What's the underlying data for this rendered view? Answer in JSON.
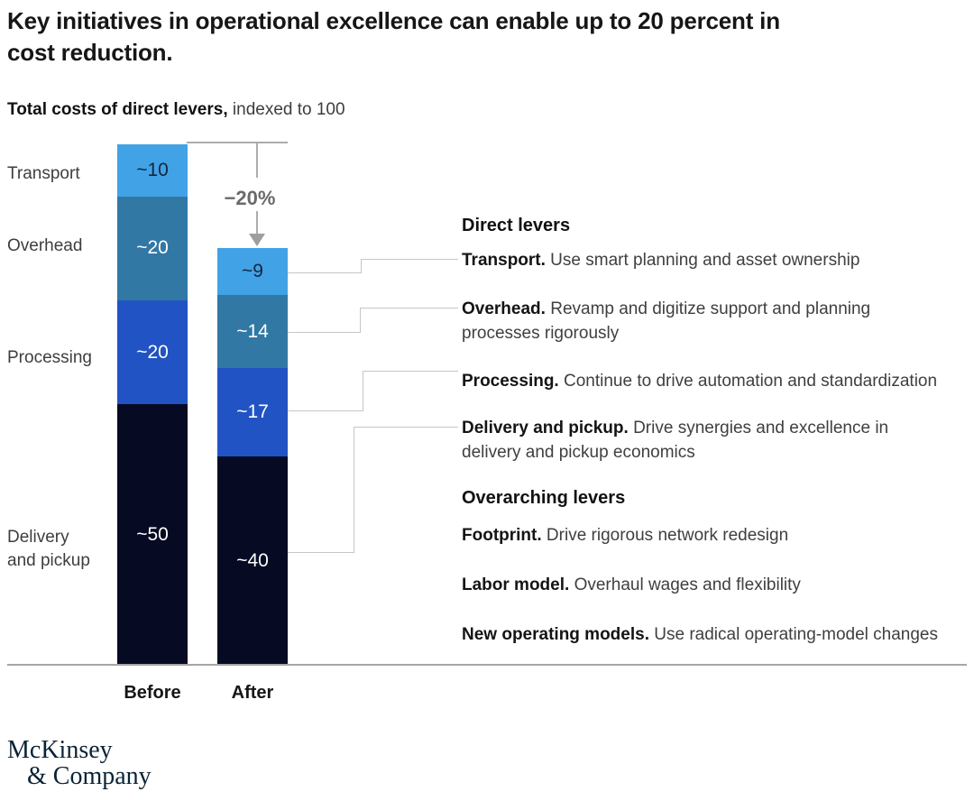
{
  "title": "Key initiatives in operational excellence can enable up to 20 percent in\ncost reduction.",
  "subtitle": {
    "bold": "Total costs of direct levers,",
    "regular": " indexed to 100"
  },
  "chart_data": {
    "type": "bar",
    "stacked": true,
    "title": "Total costs of direct levers, indexed to 100",
    "categories": [
      "Before",
      "After"
    ],
    "totals": [
      100,
      80
    ],
    "ylim": [
      0,
      100
    ],
    "series": [
      {
        "name": "Transport",
        "values": [
          10,
          9
        ],
        "labels": [
          "~10",
          "~9"
        ],
        "color": "#42a2e6",
        "label_color": "#122640"
      },
      {
        "name": "Overhead",
        "values": [
          20,
          14
        ],
        "labels": [
          "~20",
          "~14"
        ],
        "color": "#3278a5",
        "label_color": "#ffffff"
      },
      {
        "name": "Processing",
        "values": [
          20,
          17
        ],
        "labels": [
          "~20",
          "~17"
        ],
        "color": "#2153c4",
        "label_color": "#ffffff"
      },
      {
        "name": "Delivery and pickup",
        "values": [
          50,
          40
        ],
        "labels": [
          "~50",
          "~40"
        ],
        "color": "#060b23",
        "label_color": "#ffffff"
      }
    ],
    "change_annotation": "−20%",
    "legend_position": "left-category-labels"
  },
  "category_labels": {
    "transport": "Transport",
    "overhead": "Overhead",
    "processing": "Processing",
    "delivery": "Delivery\nand pickup"
  },
  "axis": {
    "before": "Before",
    "after": "After"
  },
  "annotations": {
    "direct_heading": "Direct levers",
    "direct_items": [
      {
        "bold": "Transport.",
        "text": " Use smart planning and asset ownership"
      },
      {
        "bold": "Overhead.",
        "text": " Revamp and digitize support and planning processes rigorously"
      },
      {
        "bold": "Processing.",
        "text": " Continue to drive automation and standardization"
      },
      {
        "bold": "Delivery and pickup.",
        "text": " Drive synergies and excellence in delivery and pickup economics"
      }
    ],
    "overarching_heading": "Overarching levers",
    "overarching_items": [
      {
        "bold": "Footprint.",
        "text": " Drive rigorous network redesign"
      },
      {
        "bold": "Labor model.",
        "text": " Overhaul wages and flexibility"
      },
      {
        "bold": "New operating models.",
        "text": " Use radical operating-model changes"
      }
    ]
  },
  "logo": {
    "line1": "McKinsey",
    "line2": "& Company"
  },
  "colors": {
    "transport": "#42a2e6",
    "overhead": "#3278a5",
    "processing": "#2153c4",
    "delivery": "#060b23",
    "connector": "#c6c6c6",
    "arrow": "#9e9e9e",
    "logo": "#0b2335"
  }
}
